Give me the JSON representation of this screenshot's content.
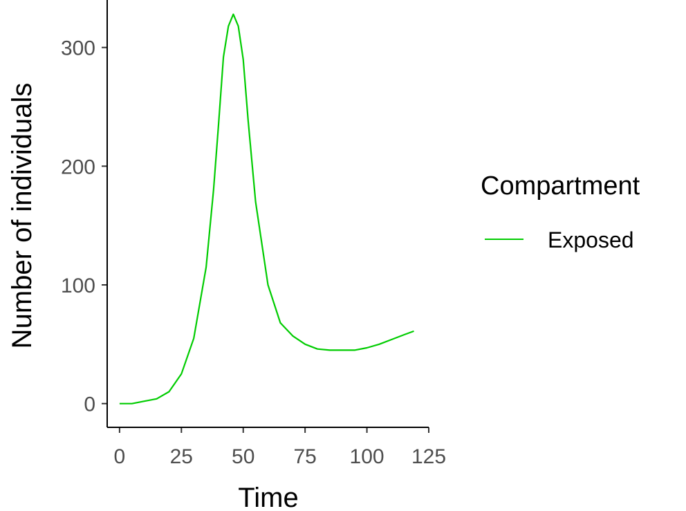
{
  "chart_data": {
    "type": "line",
    "title": "",
    "xlabel": "Time",
    "ylabel": "Number of individuals",
    "xlim": [
      -5,
      125
    ],
    "ylim": [
      -20,
      340
    ],
    "x_ticks": [
      0,
      25,
      50,
      75,
      100,
      125
    ],
    "y_ticks": [
      0,
      100,
      200,
      300
    ],
    "grid": false,
    "legend": {
      "title": "Compartment",
      "position": "right"
    },
    "series": [
      {
        "name": "Exposed",
        "color": "#00cc00",
        "x": [
          0,
          5,
          10,
          15,
          20,
          25,
          30,
          35,
          38,
          40,
          42,
          44,
          46,
          48,
          50,
          52,
          55,
          60,
          65,
          70,
          75,
          80,
          85,
          90,
          95,
          100,
          105,
          110,
          115,
          119
        ],
        "y": [
          0,
          0,
          2,
          4,
          10,
          25,
          55,
          115,
          180,
          235,
          292,
          318,
          328,
          318,
          290,
          238,
          170,
          100,
          68,
          57,
          50,
          46,
          45,
          45,
          45,
          47,
          50,
          54,
          58,
          61
        ]
      }
    ]
  }
}
